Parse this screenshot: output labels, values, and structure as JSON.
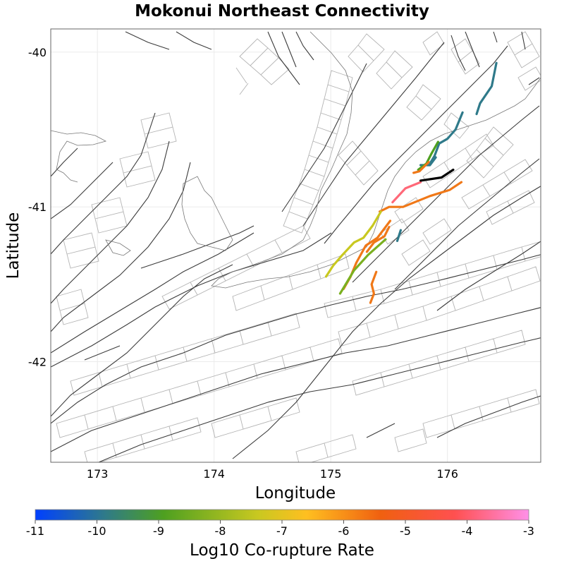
{
  "title": "Mokonui Northeast Connectivity",
  "xaxis": {
    "label": "Longitude",
    "range": [
      172.6,
      176.8
    ],
    "ticks": [
      173,
      174,
      175,
      176
    ]
  },
  "yaxis": {
    "label": "Latitude",
    "range": [
      -42.65,
      -39.85
    ],
    "ticks": [
      -40,
      -41,
      -42
    ]
  },
  "colorbar": {
    "label": "Log10 Co-rupture Rate",
    "range": [
      -11,
      -3
    ],
    "ticks": [
      -11,
      -10,
      -9,
      -8,
      -7,
      -6,
      -5,
      -4,
      -3
    ],
    "colors": [
      "#0040ff",
      "#2f7a8a",
      "#4ea020",
      "#c8c820",
      "#ffbf20",
      "#f06010",
      "#ff5050",
      "#ff90e8"
    ]
  },
  "chart_data": {
    "type": "map",
    "title": "Mokonui Northeast Connectivity",
    "xlabel": "Longitude",
    "ylabel": "Latitude",
    "xlim": [
      172.6,
      176.8
    ],
    "ylim": [
      -42.65,
      -39.85
    ],
    "source_fault": {
      "name": "Mokonui Northeast",
      "color": "#000000",
      "path": [
        [
          175.77,
          -40.83
        ],
        [
          175.95,
          -40.81
        ],
        [
          176.05,
          -40.76
        ]
      ]
    },
    "coruptures": [
      {
        "log10_rate": -9.9,
        "color": "#2f7a8a",
        "path": [
          [
            176.42,
            -40.07
          ],
          [
            176.38,
            -40.22
          ],
          [
            176.28,
            -40.33
          ],
          [
            176.25,
            -40.4
          ]
        ]
      },
      {
        "log10_rate": -9.9,
        "color": "#2f7a8a",
        "path": [
          [
            176.13,
            -40.39
          ],
          [
            176.07,
            -40.5
          ],
          [
            176.0,
            -40.56
          ],
          [
            175.93,
            -40.59
          ],
          [
            175.89,
            -40.67
          ],
          [
            175.85,
            -40.72
          ]
        ]
      },
      {
        "log10_rate": -9.8,
        "color": "#2f7a8a",
        "path": [
          [
            175.9,
            -40.68
          ],
          [
            175.85,
            -40.73
          ],
          [
            175.77,
            -40.73
          ]
        ]
      },
      {
        "log10_rate": -8.9,
        "color": "#4ea020",
        "path": [
          [
            175.92,
            -40.58
          ],
          [
            175.86,
            -40.66
          ],
          [
            175.82,
            -40.72
          ],
          [
            175.75,
            -40.76
          ]
        ]
      },
      {
        "log10_rate": -5.4,
        "color": "#f07818",
        "path": [
          [
            175.84,
            -40.71
          ],
          [
            175.76,
            -40.77
          ],
          [
            175.71,
            -40.78
          ]
        ]
      },
      {
        "log10_rate": -4.5,
        "color": "#ff6878",
        "path": [
          [
            175.77,
            -40.84
          ],
          [
            175.64,
            -40.88
          ],
          [
            175.53,
            -40.97
          ]
        ]
      },
      {
        "log10_rate": -5.3,
        "color": "#f07818",
        "path": [
          [
            176.12,
            -40.84
          ],
          [
            176.02,
            -40.89
          ],
          [
            175.85,
            -40.93
          ],
          [
            175.62,
            -41.0
          ],
          [
            175.5,
            -41.0
          ],
          [
            175.42,
            -41.03
          ]
        ]
      },
      {
        "log10_rate": -7.6,
        "color": "#c8c820",
        "path": [
          [
            175.43,
            -41.03
          ],
          [
            175.36,
            -41.12
          ],
          [
            175.28,
            -41.2
          ],
          [
            175.2,
            -41.23
          ],
          [
            175.1,
            -41.31
          ],
          [
            175.02,
            -41.38
          ],
          [
            174.96,
            -41.45
          ]
        ]
      },
      {
        "log10_rate": -5.6,
        "color": "#f07818",
        "path": [
          [
            175.51,
            -41.09
          ],
          [
            175.4,
            -41.2
          ],
          [
            175.3,
            -41.25
          ],
          [
            175.22,
            -41.36
          ],
          [
            175.17,
            -41.45
          ],
          [
            175.11,
            -41.53
          ]
        ]
      },
      {
        "log10_rate": -8.2,
        "color": "#7ab020",
        "path": [
          [
            175.47,
            -41.21
          ],
          [
            175.32,
            -41.31
          ],
          [
            175.2,
            -41.41
          ],
          [
            175.08,
            -41.56
          ]
        ]
      },
      {
        "log10_rate": -9.6,
        "color": "#2f7a8a",
        "path": [
          [
            175.6,
            -41.15
          ],
          [
            175.57,
            -41.22
          ]
        ]
      },
      {
        "log10_rate": -5.7,
        "color": "#f07818",
        "path": [
          [
            175.5,
            -41.13
          ],
          [
            175.46,
            -41.19
          ],
          [
            175.37,
            -41.23
          ],
          [
            175.31,
            -41.29
          ]
        ]
      },
      {
        "log10_rate": -5.5,
        "color": "#f07818",
        "path": [
          [
            175.39,
            -41.42
          ],
          [
            175.35,
            -41.5
          ],
          [
            175.37,
            -41.56
          ],
          [
            175.34,
            -41.62
          ]
        ]
      }
    ]
  }
}
